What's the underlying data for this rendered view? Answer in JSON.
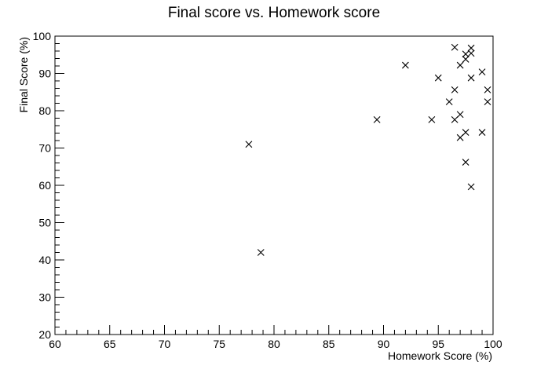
{
  "chart_data": {
    "type": "scatter",
    "title": "Final score vs. Homework score",
    "xlabel": "Homework Score (%)",
    "ylabel": "Final Score (%)",
    "xlim": [
      60,
      100
    ],
    "ylim": [
      20,
      100
    ],
    "grid": false,
    "marker": "x",
    "marker_color": "#000000",
    "x_ticks": [
      "60",
      "65",
      "70",
      "75",
      "80",
      "85",
      "90",
      "95",
      "100"
    ],
    "y_ticks": [
      "20",
      "30",
      "40",
      "50",
      "60",
      "70",
      "80",
      "90",
      "100"
    ],
    "series": [
      {
        "points": [
          {
            "x": 77.7,
            "y": 71.0
          },
          {
            "x": 78.8,
            "y": 42.0
          },
          {
            "x": 89.4,
            "y": 77.6
          },
          {
            "x": 92.0,
            "y": 92.2
          },
          {
            "x": 94.4,
            "y": 77.6
          },
          {
            "x": 95.0,
            "y": 88.8
          },
          {
            "x": 96.0,
            "y": 82.4
          },
          {
            "x": 96.5,
            "y": 97.0
          },
          {
            "x": 96.5,
            "y": 85.6
          },
          {
            "x": 96.5,
            "y": 77.6
          },
          {
            "x": 97.0,
            "y": 92.2
          },
          {
            "x": 97.0,
            "y": 79.0
          },
          {
            "x": 97.0,
            "y": 72.8
          },
          {
            "x": 97.5,
            "y": 95.2
          },
          {
            "x": 97.5,
            "y": 93.8
          },
          {
            "x": 97.5,
            "y": 74.2
          },
          {
            "x": 97.5,
            "y": 66.2
          },
          {
            "x": 98.0,
            "y": 96.8
          },
          {
            "x": 98.0,
            "y": 95.4
          },
          {
            "x": 98.0,
            "y": 88.8
          },
          {
            "x": 98.0,
            "y": 59.6
          },
          {
            "x": 99.0,
            "y": 90.4
          },
          {
            "x": 99.0,
            "y": 74.2
          },
          {
            "x": 99.5,
            "y": 85.6
          },
          {
            "x": 99.5,
            "y": 82.4
          }
        ]
      }
    ]
  }
}
